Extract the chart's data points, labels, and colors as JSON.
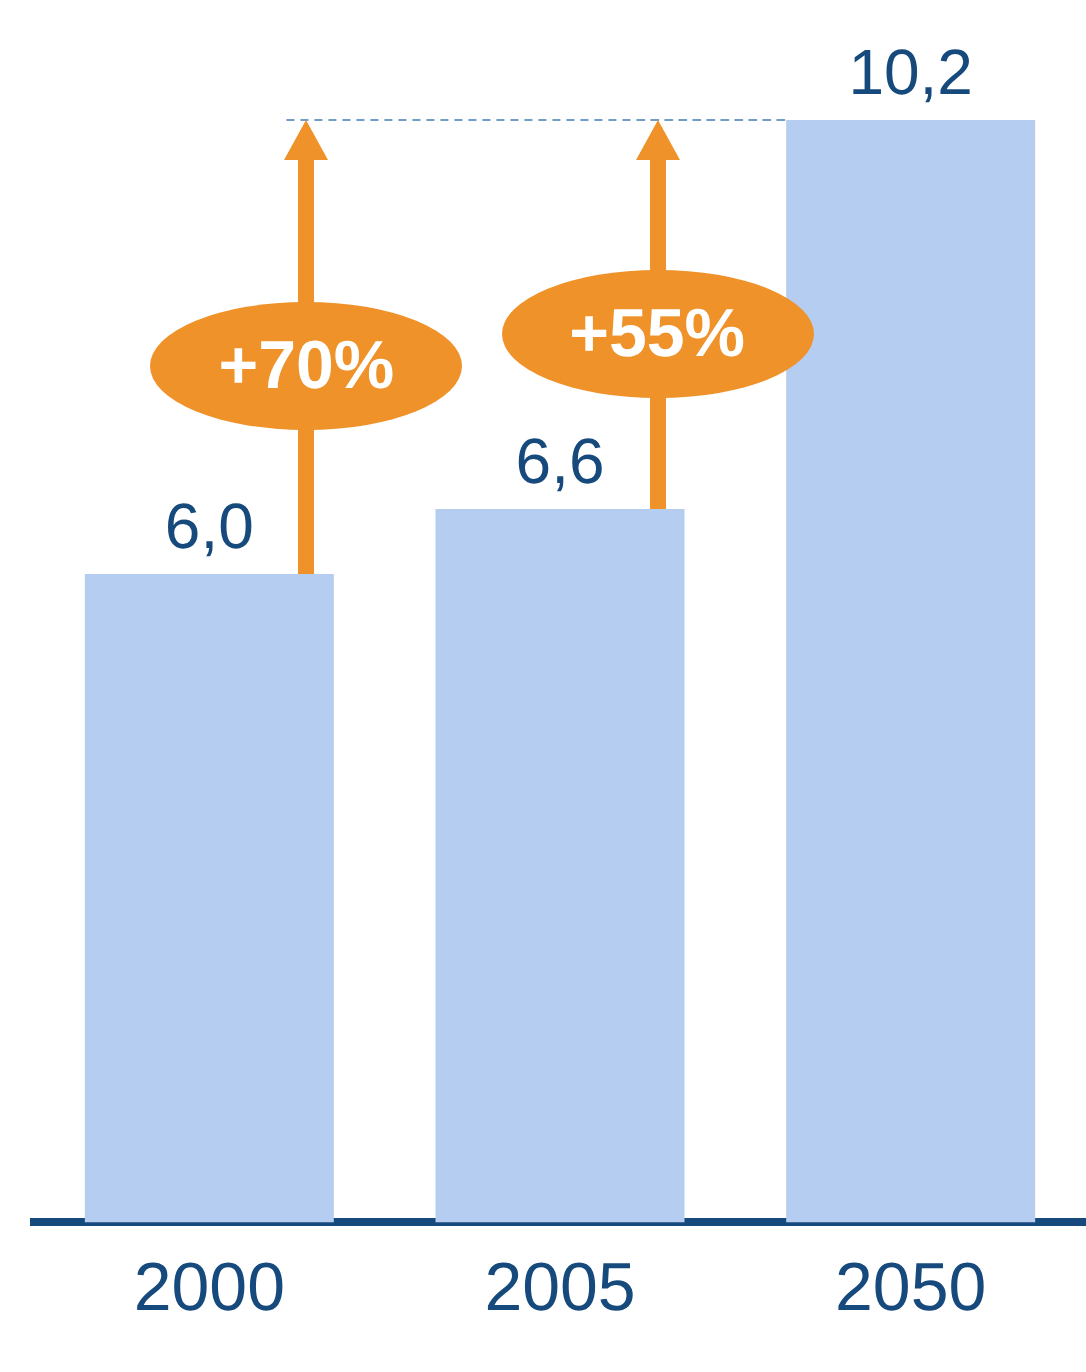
{
  "chart_data": {
    "type": "bar",
    "categories": [
      "2000",
      "2005",
      "2050"
    ],
    "values": [
      6.0,
      6.6,
      10.2
    ],
    "color": "#b4cdf0",
    "value_labels": [
      "6,0",
      "6,6",
      "10,2"
    ],
    "ylim": [
      0,
      10.2
    ],
    "tick_labels": "x",
    "grid": false,
    "legend": false,
    "annotations": [
      "+70%",
      "+55%"
    ]
  }
}
